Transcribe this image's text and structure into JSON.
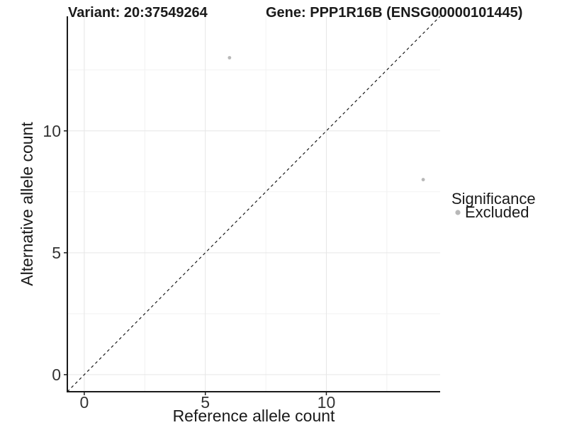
{
  "titles": {
    "variant": "Variant: 20:37549264",
    "gene": "Gene: PPP1R16B (ENSG00000101445)"
  },
  "legend": {
    "title": "Significance",
    "items": [
      {
        "label": "Excluded",
        "color": "#b8b8b8"
      }
    ]
  },
  "chart_data": {
    "type": "scatter",
    "title": "",
    "xlabel": "Reference allele count",
    "ylabel": "Alternative allele count",
    "xlim": [
      -0.7,
      14.7
    ],
    "ylim": [
      -0.7,
      14.7
    ],
    "x_ticks": [
      0,
      5,
      10
    ],
    "y_ticks": [
      0,
      5,
      10
    ],
    "x_minor_ticks": [
      2.5,
      7.5,
      12.5
    ],
    "y_minor_ticks": [
      2.5,
      7.5,
      12.5
    ],
    "grid": true,
    "legend_position": "right",
    "series": [
      {
        "name": "Excluded",
        "color": "#b8b8b8",
        "points": [
          {
            "x": 6,
            "y": 13
          },
          {
            "x": 14,
            "y": 8
          }
        ]
      }
    ],
    "reference_line": {
      "type": "identity",
      "style": "dashed",
      "from": [
        -0.7,
        -0.7
      ],
      "to": [
        14.7,
        14.7
      ]
    }
  },
  "colors": {
    "background": "#ffffff",
    "grid_major": "#e6e6e6",
    "grid_minor": "#f2f2f2",
    "axis": "#1a1a1a",
    "tick_text": "#333333",
    "text": "#1a1a1a",
    "point": "#b8b8b8"
  }
}
